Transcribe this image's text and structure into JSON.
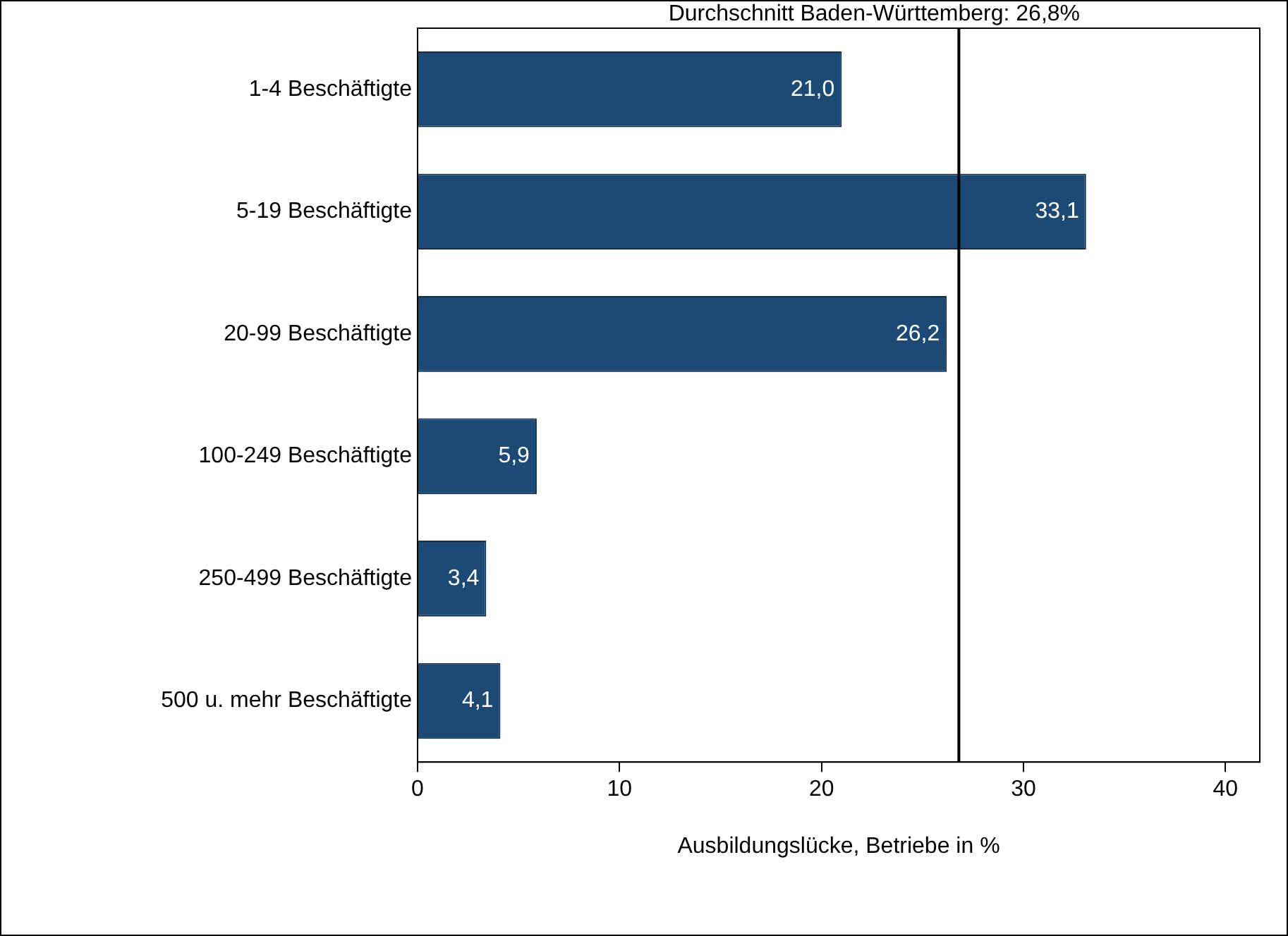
{
  "chart_data": {
    "type": "bar",
    "orientation": "horizontal",
    "xlabel": "Ausbildungslücke, Betriebe in %",
    "categories": [
      "1-4 Beschäftigte",
      "5-19 Beschäftigte",
      "20-99 Beschäftigte",
      "100-249 Beschäftigte",
      "250-499 Beschäftigte",
      "500 u. mehr Beschäftigte"
    ],
    "values": [
      21.0,
      33.1,
      26.2,
      5.9,
      3.4,
      4.1
    ],
    "value_labels": [
      "21,0",
      "33,1",
      "26,2",
      "5,9",
      "3,4",
      "4,1"
    ],
    "color": "#1c4a75",
    "xlim": [
      0,
      41.7
    ],
    "xticks": [
      0,
      10,
      20,
      30,
      40
    ],
    "grid": false,
    "legend": false,
    "ref_lines": [
      {
        "axis": "x",
        "value": 26.8,
        "label": "Durchschnitt Baden-Württemberg: 26,8%",
        "color": "#000000"
      }
    ]
  }
}
